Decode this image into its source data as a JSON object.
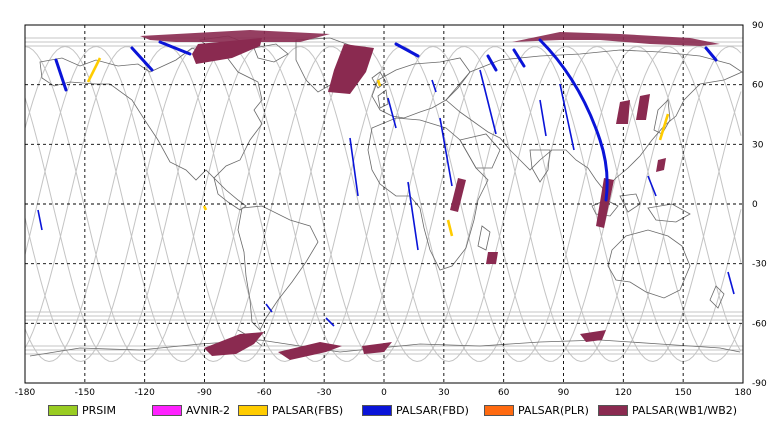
{
  "map": {
    "x_ticks": [
      "-180",
      "-150",
      "-120",
      "-90",
      "-60",
      "-30",
      "0",
      "30",
      "60",
      "90",
      "120",
      "150",
      "180"
    ],
    "y_ticks": [
      "90",
      "60",
      "30",
      "0",
      "-30",
      "-60",
      "-90"
    ],
    "colors": {
      "frame": "#000000",
      "grid": "#000000",
      "orbit": "#c0c0c0",
      "coast": "#606060"
    }
  },
  "legend": [
    {
      "label": "PRSIM",
      "color": "#99cc22"
    },
    {
      "label": "AVNIR-2",
      "color": "#ff22ff"
    },
    {
      "label": "PALSAR(FBS)",
      "color": "#ffcc00"
    },
    {
      "label": "PALSAR(FBD)",
      "color": "#0a14d8"
    },
    {
      "label": "PALSAR(PLR)",
      "color": "#ff6a10"
    },
    {
      "label": "PALSAR(WB1/WB2)",
      "color": "#8a2a50"
    }
  ]
}
